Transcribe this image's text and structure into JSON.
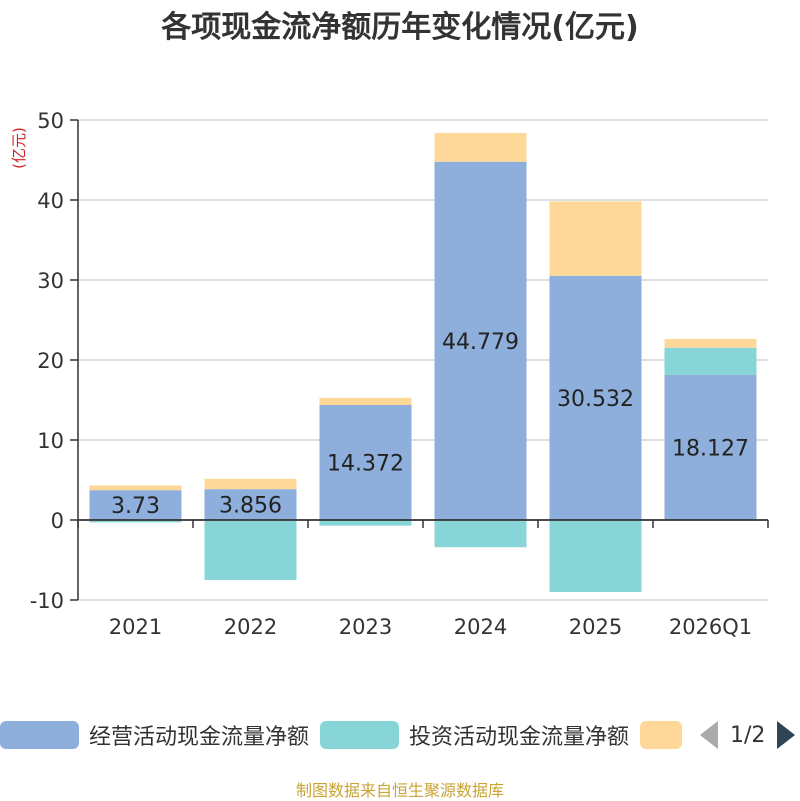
{
  "chart_data": {
    "type": "bar",
    "stacked": true,
    "title": "各项现金流净额历年变化情况(亿元)",
    "ylabel": "(亿元)",
    "ylim": [
      -10,
      50
    ],
    "yticks": [
      -10,
      0,
      10,
      20,
      30,
      40,
      50
    ],
    "categories": [
      "2021",
      "2022",
      "2023",
      "2024",
      "2025",
      "2026Q1"
    ],
    "series": [
      {
        "name": "经营活动现金流量净额",
        "color": "#8eaedb",
        "values": [
          3.73,
          3.856,
          14.372,
          44.779,
          30.532,
          18.127
        ],
        "labels": [
          "3.73",
          "3.856",
          "14.372",
          "44.779",
          "30.532",
          "18.127"
        ]
      },
      {
        "name": "投资活动现金流量净额",
        "color": "#87d5d6",
        "values": [
          -0.3,
          -7.5,
          -0.7,
          -3.4,
          -9.0,
          3.4
        ]
      },
      {
        "name": "",
        "color": "#fdd898",
        "values": [
          0.6,
          1.3,
          0.9,
          3.6,
          9.3,
          1.1
        ]
      }
    ]
  },
  "legend": {
    "items": [
      {
        "label": "经营活动现金流量净额",
        "color": "#8eaedb"
      },
      {
        "label": "投资活动现金流量净额",
        "color": "#87d5d6"
      },
      {
        "label": "",
        "color": "#fdd898"
      }
    ],
    "pager": "1/2"
  },
  "source": "制图数据来自恒生聚源数据库"
}
